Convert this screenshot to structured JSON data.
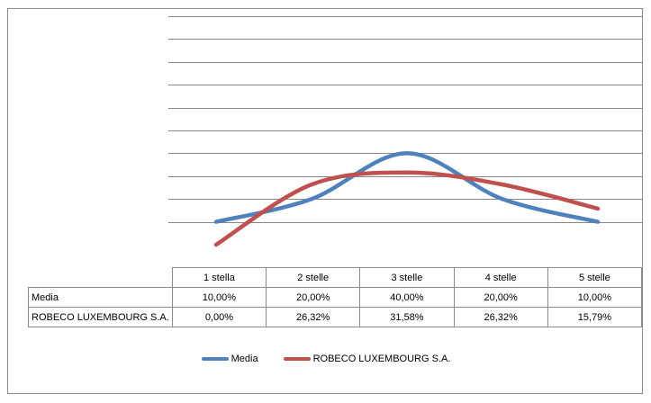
{
  "chart_data": {
    "type": "line",
    "categories": [
      "1 stella",
      "2 stelle",
      "3 stelle",
      "4 stelle",
      "5 stelle"
    ],
    "series": [
      {
        "name": "Media",
        "color": "#4f81bd",
        "values": [
          10.0,
          20.0,
          40.0,
          20.0,
          10.0
        ],
        "labels": [
          "10,00%",
          "20,00%",
          "40,00%",
          "20,00%",
          "10,00%"
        ]
      },
      {
        "name": "ROBECO LUXEMBOURG S.A.",
        "color": "#c0504d",
        "values": [
          0.0,
          26.32,
          31.58,
          26.32,
          15.79
        ],
        "labels": [
          "0,00%",
          "26,32%",
          "31,58%",
          "26,32%",
          "15,79%"
        ]
      }
    ],
    "ylim": [
      0,
      100
    ],
    "grid": true,
    "ytick_labels_visible": false,
    "data_table": true,
    "legend_position": "bottom"
  }
}
